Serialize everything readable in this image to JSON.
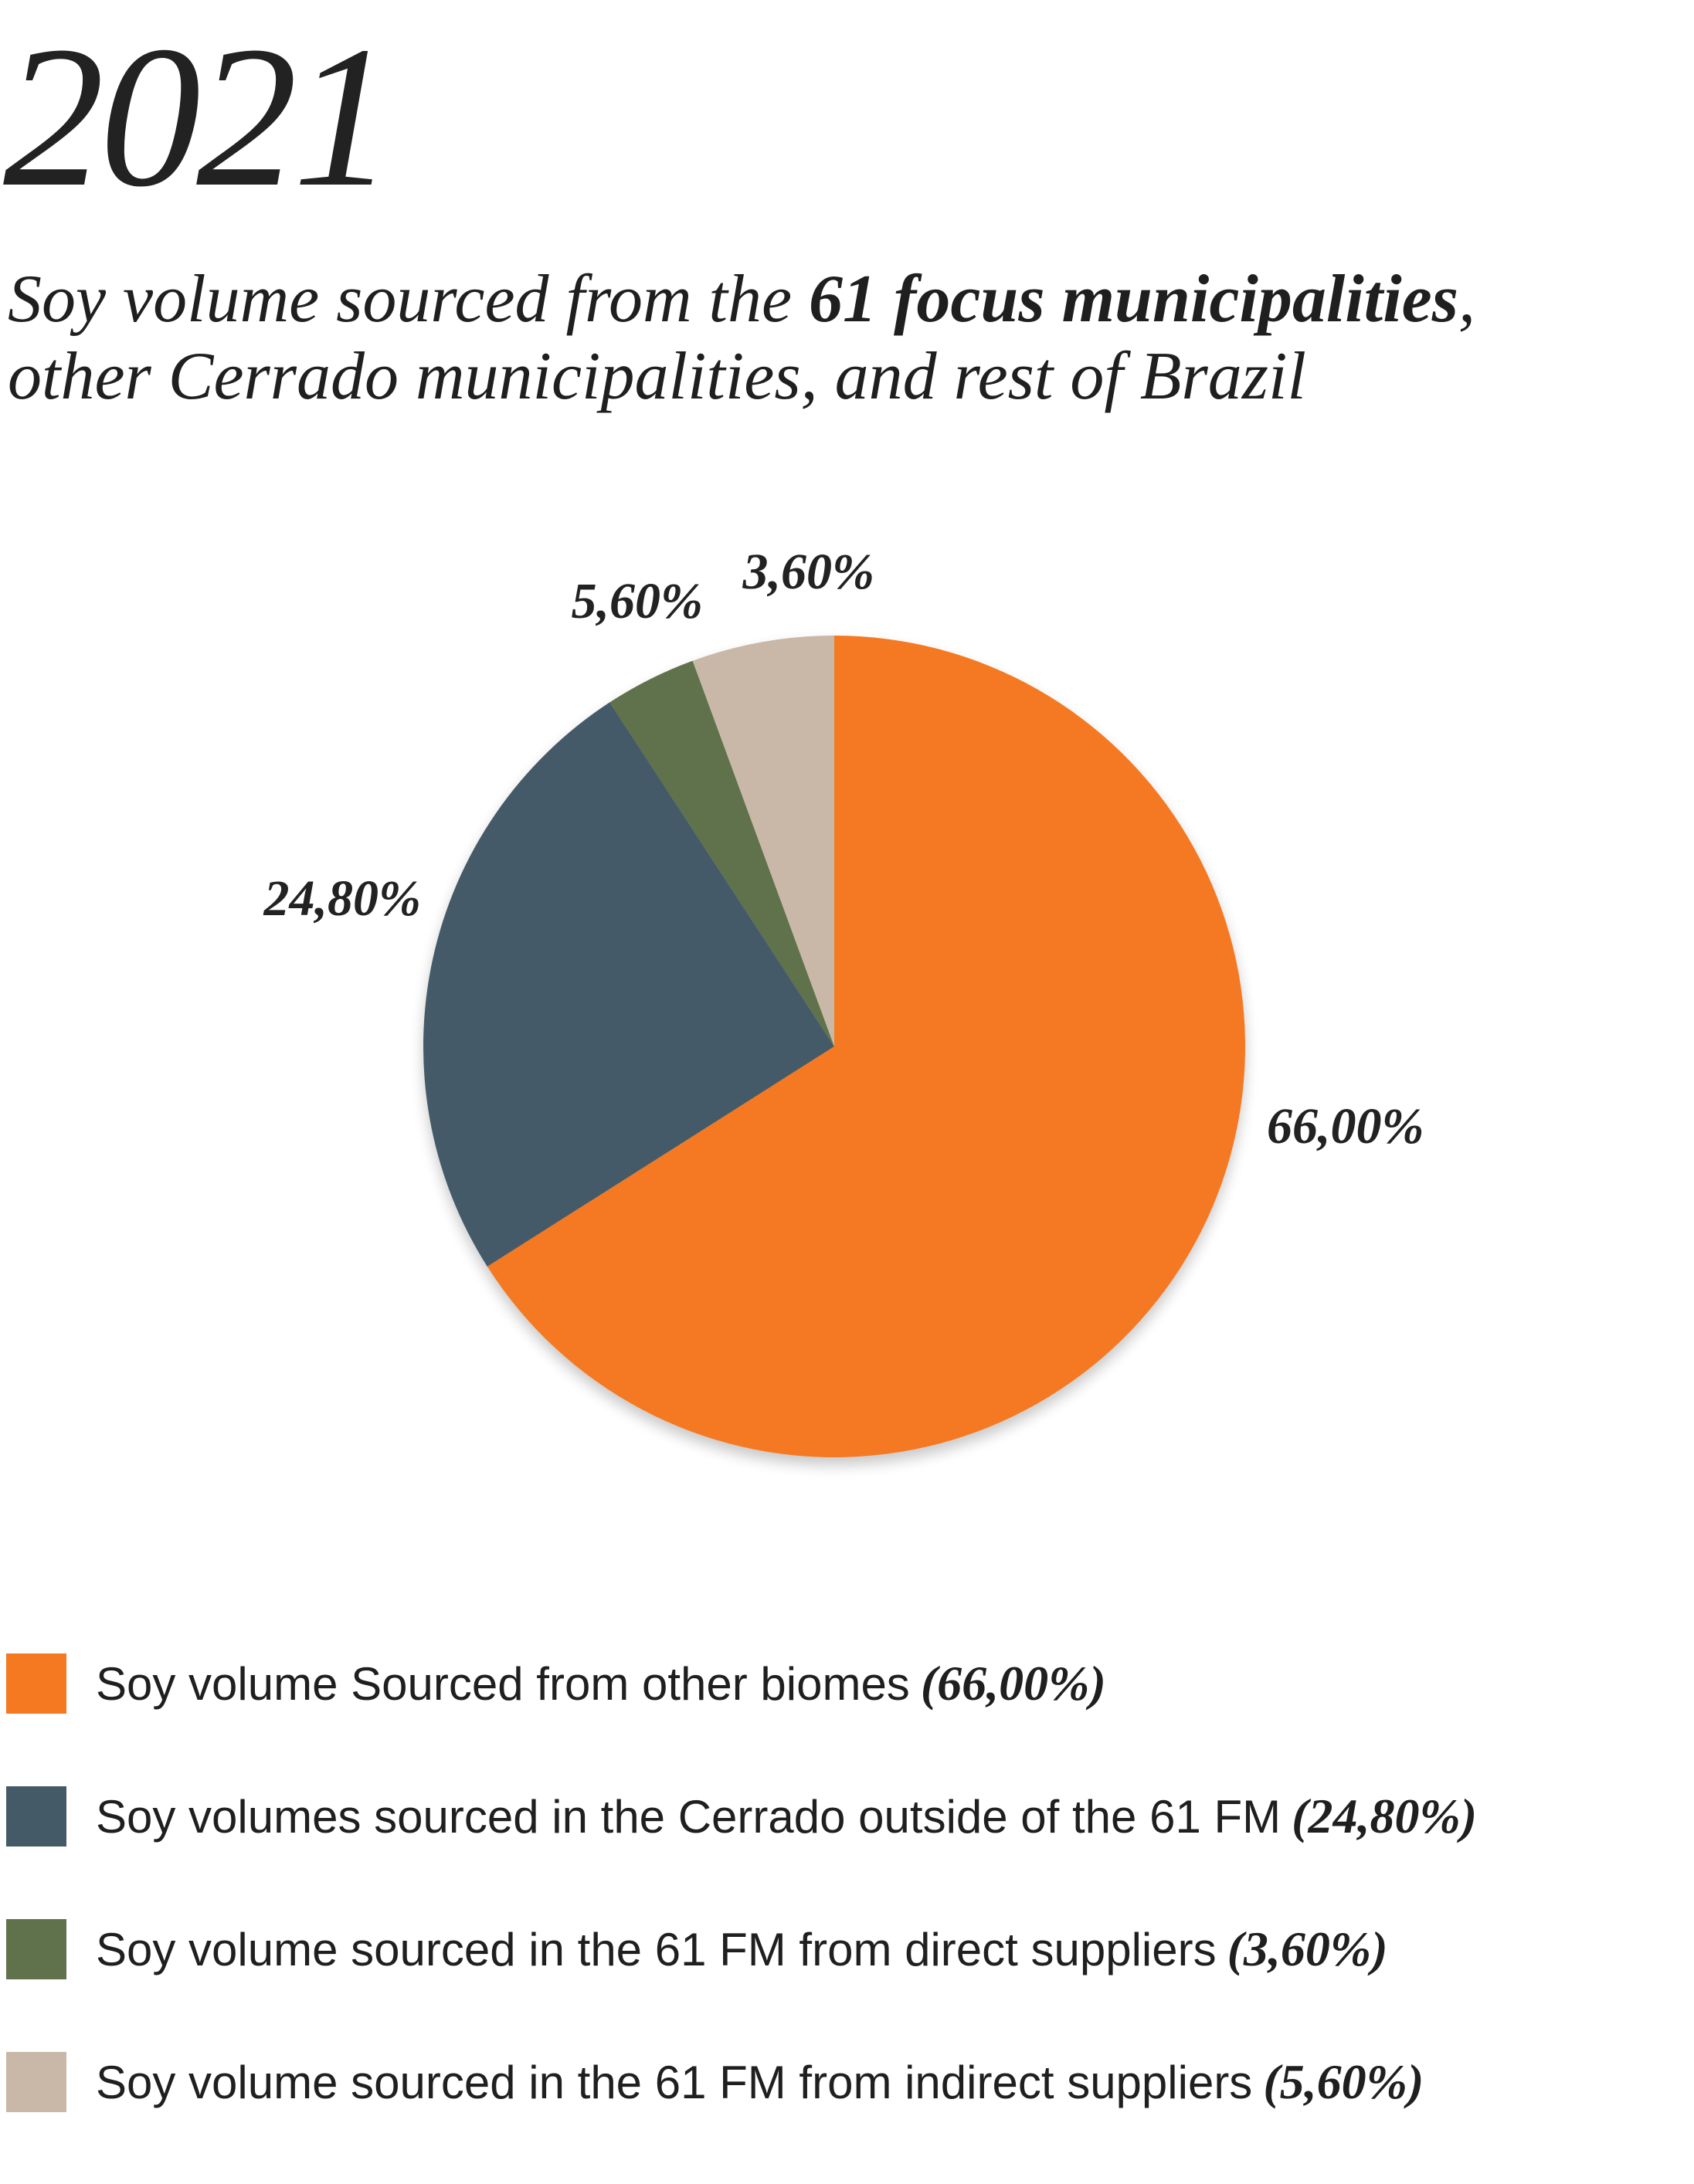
{
  "header": {
    "year": "2021",
    "subtitle_part1": "Soy volume sourced from the ",
    "subtitle_bold": "61 focus municipalities",
    "subtitle_part2": ",",
    "subtitle_line2": "other Cerrado municipalities, and rest of Brazil"
  },
  "chart_data": {
    "type": "pie",
    "title": "",
    "slices": [
      {
        "name": "Soy volume Sourced from other biomes",
        "value": 66.0,
        "label": "66,00%",
        "legend_label": "(66,00%)",
        "color": "#f47920"
      },
      {
        "name": "Soy volumes sourced in the Cerrado outside of the 61 FM",
        "value": 24.8,
        "label": "24,80%",
        "legend_label": "(24,80%)",
        "color": "#455a67"
      },
      {
        "name": "Soy volume sourced in the 61 FM from direct suppliers",
        "value": 3.6,
        "label": "3,60%",
        "legend_label": "(3,60%)",
        "color": "#5f724b"
      },
      {
        "name": "Soy volume sourced in the 61 FM from indirect suppliers",
        "value": 5.6,
        "label": "5,60%",
        "legend_label": "(5,60%)",
        "color": "#c9b8a7"
      }
    ],
    "start_angle": "12 o'clock",
    "direction": "clockwise",
    "legend_position": "bottom"
  }
}
